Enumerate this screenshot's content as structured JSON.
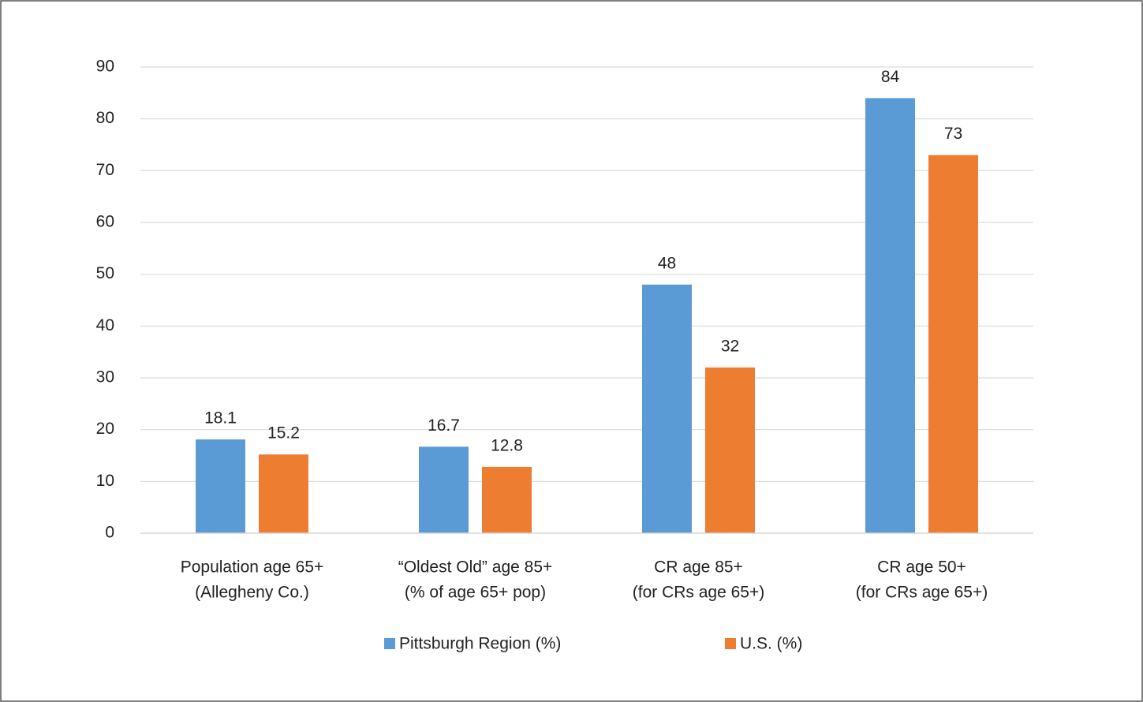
{
  "chart_data": {
    "type": "bar",
    "categories": [
      [
        "Population age 65+",
        "(Allegheny Co.)"
      ],
      [
        "“Oldest Old” age 85+",
        "(% of age 65+ pop)"
      ],
      [
        "CR age 85+",
        "(for CRs age 65+)"
      ],
      [
        "CR age 50+",
        "(for CRs age 65+)"
      ]
    ],
    "series": [
      {
        "name": "Pittsburgh Region (%)",
        "color": "#5b9bd5",
        "values": [
          18.1,
          16.7,
          48,
          84
        ]
      },
      {
        "name": "U.S. (%)",
        "color": "#ed7d31",
        "values": [
          15.2,
          12.8,
          32,
          73
        ]
      }
    ],
    "ylim": [
      0,
      90
    ],
    "yticks": [
      0,
      10,
      20,
      30,
      40,
      50,
      60,
      70,
      80,
      90
    ],
    "grid": true,
    "legend": "bottom"
  }
}
